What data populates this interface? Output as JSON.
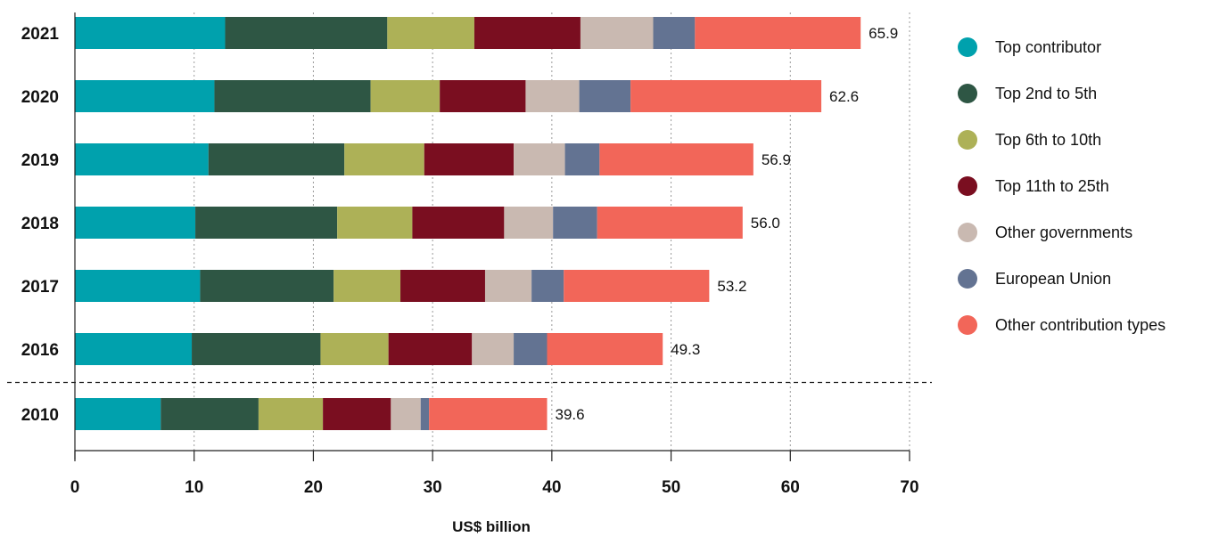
{
  "chart_data": {
    "type": "bar",
    "orientation": "horizontal",
    "stacked": true,
    "categories": [
      "2021",
      "2020",
      "2019",
      "2018",
      "2017",
      "2016",
      "2010"
    ],
    "series": [
      {
        "name": "Top contributor",
        "color": "#00a1ad",
        "values": [
          12.6,
          11.7,
          11.2,
          10.1,
          10.5,
          9.8,
          7.2
        ]
      },
      {
        "name": "Top 2nd to 5th",
        "color": "#2e5644",
        "values": [
          13.6,
          13.1,
          11.4,
          11.9,
          11.2,
          10.8,
          8.2
        ]
      },
      {
        "name": "Top 6th to 10th",
        "color": "#adb157",
        "values": [
          7.3,
          5.8,
          6.7,
          6.3,
          5.6,
          5.7,
          5.4
        ]
      },
      {
        "name": "Top 11th to 25th",
        "color": "#7a0e20",
        "values": [
          8.9,
          7.2,
          7.5,
          7.7,
          7.1,
          7.0,
          5.7
        ]
      },
      {
        "name": "Other governments",
        "color": "#c9b9b1",
        "values": [
          6.1,
          4.5,
          4.3,
          4.1,
          3.9,
          3.5,
          2.5
        ]
      },
      {
        "name": "European Union",
        "color": "#637392",
        "values": [
          3.5,
          4.3,
          2.9,
          3.7,
          2.7,
          2.8,
          0.7
        ]
      },
      {
        "name": "Other contribution types",
        "color": "#f26659",
        "values": [
          13.9,
          16.0,
          12.9,
          12.2,
          12.2,
          9.7,
          9.9
        ]
      }
    ],
    "totals": [
      "65.9",
      "62.6",
      "56.9",
      "56.0",
      "53.2",
      "49.3",
      "39.6"
    ],
    "xlabel": "US$ billion",
    "ylabel": "",
    "xlim": [
      0,
      70
    ],
    "xticks": [
      "0",
      "10",
      "20",
      "30",
      "40",
      "50",
      "60",
      "70"
    ],
    "grid": "vertical dotted",
    "legend_position": "right",
    "separator_before_category": "2010"
  }
}
